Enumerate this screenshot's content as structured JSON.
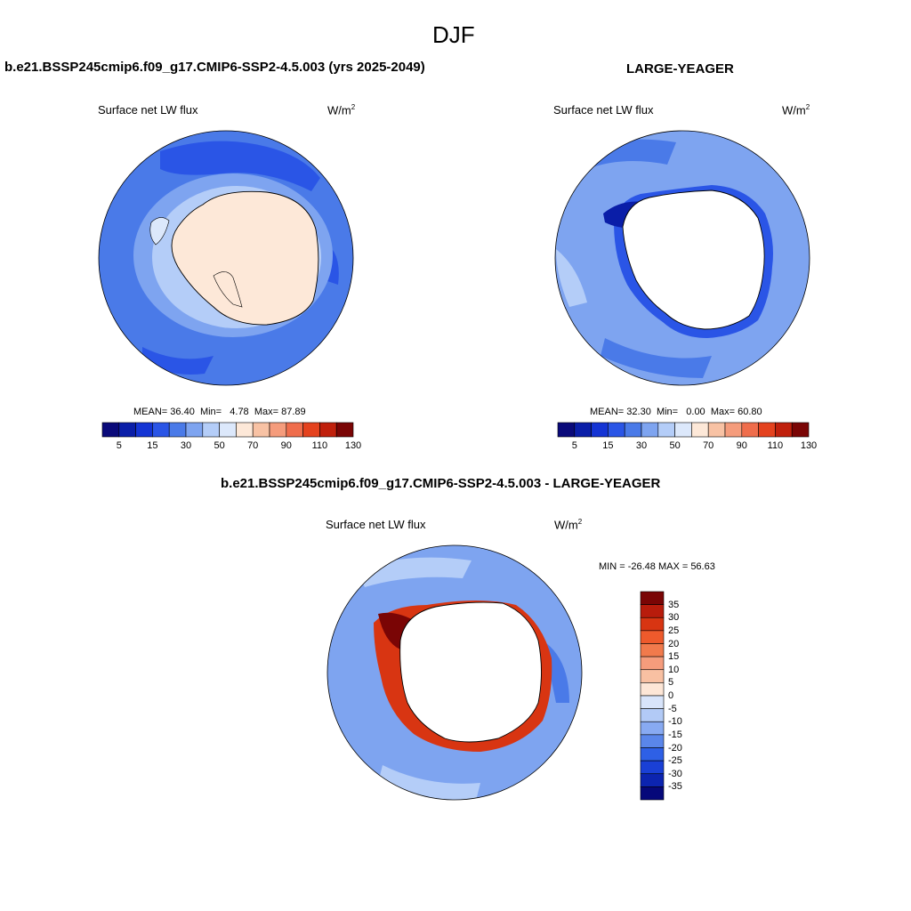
{
  "figure": {
    "title": "DJF"
  },
  "panels": [
    {
      "title": "b.e21.BSSP245cmip6.f09_g17.CMIP6-SSP2-4.5.003 (yrs 2025-2049)",
      "variable": "Surface net LW flux",
      "units": "W/m",
      "units_sup": "2",
      "stats": {
        "mean_label": "MEAN=",
        "mean": "36.40",
        "min_label": "Min=",
        "min": "4.78",
        "max_label": "Max=",
        "max": "87.89"
      }
    },
    {
      "title": "LARGE-YEAGER",
      "variable": "Surface net LW flux",
      "units": "W/m",
      "units_sup": "2",
      "stats": {
        "mean_label": "MEAN=",
        "mean": "32.30",
        "min_label": "Min=",
        "min": "0.00",
        "max_label": "Max=",
        "max": "60.80"
      }
    },
    {
      "title": "b.e21.BSSP245cmip6.f09_g17.CMIP6-SSP2-4.5.003 - LARGE-YEAGER",
      "variable": "Surface net LW flux",
      "units": "W/m",
      "units_sup": "2",
      "minmax": "MIN = -26.48 MAX =  56.63"
    }
  ],
  "abs_colorbar": {
    "colors": [
      "#0a0a7a",
      "#0a1ea8",
      "#1434d4",
      "#2a55e6",
      "#4a7ae8",
      "#7ea4f0",
      "#b4cdf8",
      "#dce8fb",
      "#fde8d8",
      "#f8c2a4",
      "#f59c7c",
      "#ef6d4c",
      "#e4421e",
      "#c0200c",
      "#7a0505"
    ],
    "labels": [
      "5",
      "15",
      "30",
      "50",
      "70",
      "90",
      "110",
      "130"
    ]
  },
  "diff_colorbar": {
    "colors": [
      "#7a0505",
      "#b81c0c",
      "#d83512",
      "#ee5a2c",
      "#f17a4c",
      "#f59c7c",
      "#f8c0a2",
      "#fde6d6",
      "#d8e4fa",
      "#b2caf6",
      "#88aaf2",
      "#5a86ea",
      "#2e60e6",
      "#1a40d6",
      "#0c24b0",
      "#06087a"
    ],
    "labels": [
      "35",
      "30",
      "25",
      "20",
      "15",
      "10",
      "5",
      "0",
      "-5",
      "-10",
      "-15",
      "-20",
      "-25",
      "-30",
      "-35"
    ]
  },
  "chart_data": [
    {
      "type": "heatmap",
      "title": "b.e21.BSSP245cmip6.f09_g17.CMIP6-SSP2-4.5.003 (yrs 2025-2049)",
      "variable": "Surface net LW flux",
      "units": "W/m2",
      "projection": "south polar stereographic",
      "mean": 36.4,
      "min": 4.78,
      "max": 87.89,
      "colorbar_levels": [
        5,
        10,
        15,
        20,
        30,
        40,
        50,
        60,
        70,
        80,
        90,
        100,
        110,
        120,
        130
      ]
    },
    {
      "type": "heatmap",
      "title": "LARGE-YEAGER",
      "variable": "Surface net LW flux",
      "units": "W/m2",
      "projection": "south polar stereographic",
      "mean": 32.3,
      "min": 0.0,
      "max": 60.8,
      "colorbar_levels": [
        5,
        10,
        15,
        20,
        30,
        40,
        50,
        60,
        70,
        80,
        90,
        100,
        110,
        120,
        130
      ]
    },
    {
      "type": "heatmap",
      "title": "b.e21.BSSP245cmip6.f09_g17.CMIP6-SSP2-4.5.003 - LARGE-YEAGER",
      "variable": "Surface net LW flux",
      "units": "W/m2",
      "projection": "south polar stereographic",
      "min": -26.48,
      "max": 56.63,
      "colorbar_levels": [
        35,
        30,
        25,
        20,
        15,
        10,
        5,
        0,
        -5,
        -10,
        -15,
        -20,
        -25,
        -30,
        -35
      ]
    }
  ]
}
